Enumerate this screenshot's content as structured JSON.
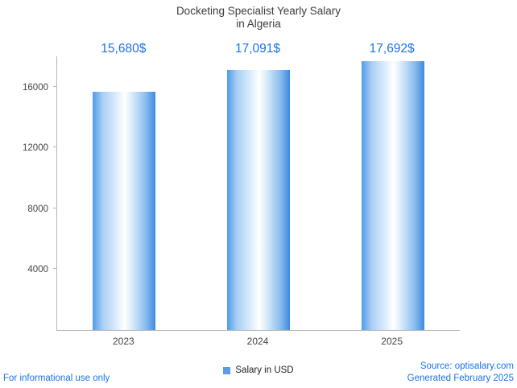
{
  "title": {
    "line1": "Docketing Specialist Yearly Salary",
    "line2": "in Algeria"
  },
  "chart_data": {
    "type": "bar",
    "title": "Docketing Specialist Yearly Salary in Algeria",
    "categories": [
      "2023",
      "2024",
      "2025"
    ],
    "values": [
      15680,
      17091,
      17692
    ],
    "value_labels": [
      "15,680$",
      "17,091$",
      "17,692$"
    ],
    "series": [
      {
        "name": "Salary in USD",
        "values": [
          15680,
          17091,
          17692
        ]
      }
    ],
    "xlabel": "",
    "ylabel": "",
    "ylim": [
      0,
      18000
    ],
    "yticks": [
      4000,
      8000,
      12000,
      16000
    ],
    "grid": false,
    "legend_position": "bottom"
  },
  "legend": {
    "label": "Salary in USD",
    "swatch_color": "#5c9ce5"
  },
  "footer": {
    "disclaimer": "For informational use only",
    "source": "Source: optisalary.com",
    "generated": "Generated February 2025"
  },
  "colors": {
    "accent_blue": "#1a73e8",
    "bar_edge_blue": "#4f9ce8",
    "axis_gray": "#b7b7b7",
    "title_text": "#3c3c3c"
  }
}
